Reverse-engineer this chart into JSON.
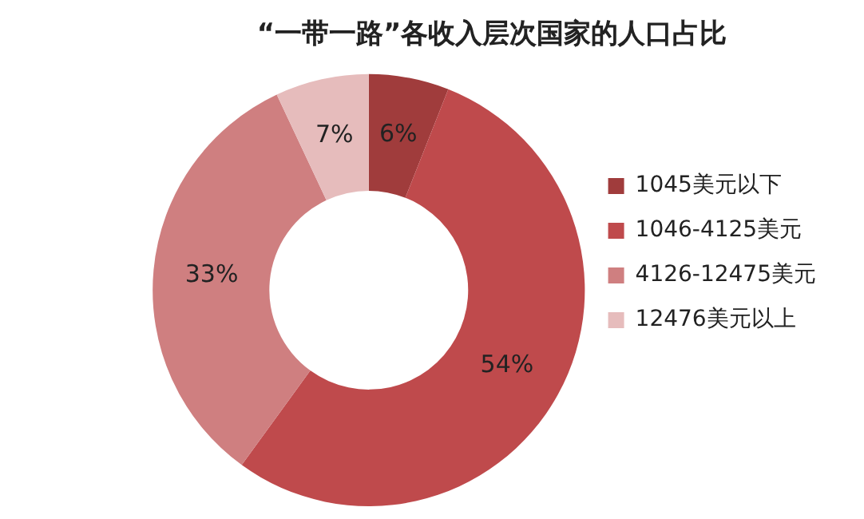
{
  "chart_data": {
    "type": "donut",
    "title": "“一带一路”各收入层次国家的人口占比",
    "categories": [
      "1045美元以下",
      "1046-4125美元",
      "4126-12475美元",
      "12476美元以上"
    ],
    "values": [
      6,
      54,
      33,
      7
    ],
    "value_labels": [
      "6%",
      "54%",
      "33%",
      "7%"
    ],
    "colors": [
      "#a03c3c",
      "#bf4a4c",
      "#cf7f80",
      "#e6bcbc"
    ],
    "legend": "right"
  }
}
